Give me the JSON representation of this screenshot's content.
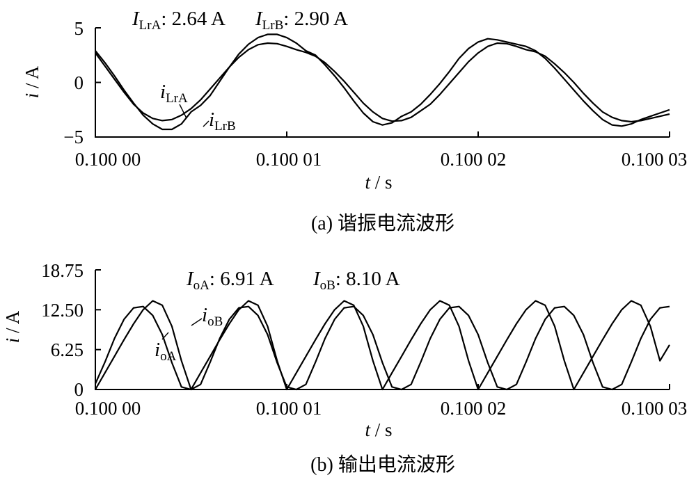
{
  "chart_data": [
    {
      "type": "line",
      "caption": "(a)  谐振电流波形",
      "ylabel_var": "i",
      "ylabel_unit": " / A",
      "xlabel_var": "t",
      "xlabel_unit": " / s",
      "xlim": [
        0.1,
        0.10003
      ],
      "ylim": [
        -5,
        5
      ],
      "xticks": [
        0.1,
        0.10001,
        0.10002,
        0.10003
      ],
      "xtick_labels": [
        "0.100 00",
        "0.100 01",
        "0.100 02",
        "0.100 03"
      ],
      "yticks": [
        -5,
        0,
        5
      ],
      "ytick_labels": [
        "−5",
        "0",
        "5"
      ],
      "rms": [
        {
          "symbol": "I",
          "sub": "LrA",
          "value": ": 2.64 A"
        },
        {
          "symbol": "I",
          "sub": "LrB",
          "value": ": 2.90 A"
        }
      ],
      "series": [
        {
          "name_symbol": "i",
          "name_sub": "LrA",
          "x": [
            0.1,
            0.1000005,
            0.100001,
            0.1000015,
            0.100002,
            0.1000025,
            0.100003,
            0.1000035,
            0.100004,
            0.1000045,
            0.100005,
            0.1000055,
            0.100006,
            0.1000065,
            0.100007,
            0.1000075,
            0.100008,
            0.1000085,
            0.100009,
            0.1000095,
            0.10001,
            0.1000105,
            0.100011,
            0.1000115,
            0.100012,
            0.1000125,
            0.100013,
            0.1000135,
            0.100014,
            0.1000145,
            0.100015,
            0.1000155,
            0.100016,
            0.1000165,
            0.100017,
            0.1000175,
            0.100018,
            0.1000185,
            0.100019,
            0.1000195,
            0.10002,
            0.1000205,
            0.100021,
            0.1000215,
            0.100022,
            0.1000225,
            0.100023,
            0.1000235,
            0.100024,
            0.1000245,
            0.100025,
            0.1000255,
            0.100026,
            0.1000265,
            0.100027,
            0.1000275,
            0.100028,
            0.1000285,
            0.100029,
            0.1000295,
            0.10003
          ],
          "y": [
            2.7,
            1.5,
            0.3,
            -0.9,
            -2.0,
            -2.8,
            -3.3,
            -3.5,
            -3.4,
            -3.0,
            -2.4,
            -1.6,
            -0.6,
            0.4,
            1.4,
            2.3,
            3.0,
            3.45,
            3.6,
            3.55,
            3.3,
            3.0,
            2.75,
            2.4,
            1.8,
            1.0,
            0.1,
            -0.9,
            -1.9,
            -2.7,
            -3.3,
            -3.55,
            -3.5,
            -3.2,
            -2.6,
            -2.0,
            -1.1,
            -0.1,
            0.9,
            1.9,
            2.7,
            3.3,
            3.6,
            3.55,
            3.3,
            3.0,
            2.8,
            2.4,
            1.7,
            0.9,
            0.0,
            -1.0,
            -1.9,
            -2.7,
            -3.2,
            -3.5,
            -3.6,
            -3.5,
            -3.3,
            -3.1,
            -2.9
          ]
        },
        {
          "name_symbol": "i",
          "name_sub": "LrB",
          "x": [
            0.1,
            0.1000005,
            0.100001,
            0.1000015,
            0.100002,
            0.1000025,
            0.100003,
            0.1000035,
            0.100004,
            0.1000045,
            0.100005,
            0.1000055,
            0.100006,
            0.1000065,
            0.100007,
            0.1000075,
            0.100008,
            0.1000085,
            0.100009,
            0.1000095,
            0.10001,
            0.1000105,
            0.100011,
            0.1000115,
            0.100012,
            0.1000125,
            0.100013,
            0.1000135,
            0.100014,
            0.1000145,
            0.100015,
            0.1000155,
            0.100016,
            0.1000165,
            0.100017,
            0.1000175,
            0.100018,
            0.1000185,
            0.100019,
            0.1000195,
            0.10002,
            0.1000205,
            0.100021,
            0.1000215,
            0.100022,
            0.1000225,
            0.100023,
            0.1000235,
            0.100024,
            0.1000245,
            0.100025,
            0.1000255,
            0.100026,
            0.1000265,
            0.100027,
            0.1000275,
            0.100028,
            0.1000285,
            0.100029,
            0.1000295,
            0.10003
          ],
          "y": [
            2.9,
            1.8,
            0.6,
            -0.7,
            -1.9,
            -3.0,
            -3.8,
            -4.3,
            -4.3,
            -3.8,
            -2.7,
            -2.1,
            -1.2,
            0.1,
            1.4,
            2.6,
            3.5,
            4.1,
            4.4,
            4.4,
            4.1,
            3.6,
            2.9,
            2.5,
            1.6,
            0.6,
            -0.5,
            -1.7,
            -2.8,
            -3.6,
            -3.9,
            -3.7,
            -3.1,
            -2.7,
            -2.0,
            -1.1,
            -0.1,
            1.0,
            2.2,
            3.1,
            3.7,
            4.0,
            3.9,
            3.7,
            3.5,
            3.3,
            2.9,
            2.2,
            1.3,
            0.3,
            -0.7,
            -1.7,
            -2.6,
            -3.4,
            -3.9,
            -4.0,
            -3.8,
            -3.4,
            -3.1,
            -2.8,
            -2.5
          ]
        }
      ]
    },
    {
      "type": "line",
      "caption": "(b)  输出电流波形",
      "ylabel_var": "i",
      "ylabel_unit": " / A",
      "xlabel_var": "t",
      "xlabel_unit": " / s",
      "xlim": [
        0.1,
        0.10003
      ],
      "ylim": [
        0,
        18.75
      ],
      "xticks": [
        0.1,
        0.10001,
        0.10002,
        0.10003
      ],
      "xtick_labels": [
        "0.100 00",
        "0.100 01",
        "0.100 02",
        "0.100 03"
      ],
      "yticks": [
        0,
        6.25,
        12.5,
        18.75
      ],
      "ytick_labels": [
        "0",
        "6.25",
        "12.50",
        "18.75"
      ],
      "rms": [
        {
          "symbol": "I",
          "sub": "oA",
          "value": ": 6.91 A"
        },
        {
          "symbol": "I",
          "sub": "oB",
          "value": ": 8.10 A"
        }
      ],
      "series": [
        {
          "name_symbol": "i",
          "name_sub": "oA",
          "x": [
            0.1,
            0.1000005,
            0.100001,
            0.1000015,
            0.100002,
            0.1000025,
            0.100003,
            0.1000035,
            0.100004,
            0.1000045,
            0.100005,
            0.1000055,
            0.100006,
            0.1000065,
            0.100007,
            0.1000075,
            0.100008,
            0.1000085,
            0.100009,
            0.1000095,
            0.10001,
            0.1000105,
            0.100011,
            0.1000115,
            0.100012,
            0.1000125,
            0.100013,
            0.1000135,
            0.100014,
            0.1000145,
            0.100015,
            0.1000155,
            0.100016,
            0.1000165,
            0.100017,
            0.1000175,
            0.100018,
            0.1000185,
            0.100019,
            0.1000195,
            0.10002,
            0.1000205,
            0.100021,
            0.1000215,
            0.100022,
            0.1000225,
            0.100023,
            0.1000235,
            0.100024,
            0.1000245,
            0.100025,
            0.1000255,
            0.100026,
            0.1000265,
            0.100027,
            0.1000275,
            0.100028,
            0.1000285,
            0.100029,
            0.1000295,
            0.10003
          ],
          "y": [
            0.9,
            4.3,
            8.0,
            11.0,
            12.8,
            13.0,
            11.6,
            8.6,
            4.2,
            0.4,
            0.0,
            0.8,
            4.3,
            8.0,
            11.0,
            12.8,
            13.0,
            11.6,
            8.6,
            4.2,
            0.4,
            0.0,
            0.8,
            4.3,
            8.0,
            11.0,
            12.8,
            13.0,
            11.6,
            8.6,
            4.2,
            0.4,
            0.0,
            0.8,
            4.3,
            8.0,
            11.0,
            12.8,
            13.0,
            11.6,
            8.6,
            4.2,
            0.4,
            0.0,
            0.8,
            4.3,
            8.0,
            11.0,
            12.8,
            13.0,
            11.6,
            8.6,
            4.2,
            0.4,
            0.0,
            0.8,
            4.3,
            8.0,
            11.0,
            12.8,
            13.0
          ]
        },
        {
          "name_symbol": "i",
          "name_sub": "oB",
          "x": [
            0.1,
            0.1000005,
            0.100001,
            0.1000015,
            0.100002,
            0.1000025,
            0.100003,
            0.1000035,
            0.100004,
            0.1000045,
            0.100005,
            0.1000055,
            0.100006,
            0.1000065,
            0.100007,
            0.1000075,
            0.100008,
            0.1000085,
            0.100009,
            0.1000095,
            0.10001,
            0.1000105,
            0.100011,
            0.1000115,
            0.100012,
            0.1000125,
            0.100013,
            0.1000135,
            0.100014,
            0.1000145,
            0.100015,
            0.1000155,
            0.100016,
            0.1000165,
            0.100017,
            0.1000175,
            0.100018,
            0.1000185,
            0.100019,
            0.1000195,
            0.10002,
            0.1000205,
            0.100021,
            0.1000215,
            0.100022,
            0.1000225,
            0.100023,
            0.1000235,
            0.100024,
            0.1000245,
            0.100025,
            0.1000255,
            0.100026,
            0.1000265,
            0.100027,
            0.1000275,
            0.100028,
            0.1000285,
            0.100029,
            0.1000295,
            0.10003
          ],
          "y": [
            0.0,
            2.6,
            5.2,
            7.8,
            10.3,
            12.5,
            13.9,
            13.2,
            9.9,
            4.5,
            0.0,
            2.6,
            5.2,
            7.8,
            10.3,
            12.5,
            13.9,
            13.2,
            9.9,
            4.5,
            0.0,
            2.6,
            5.2,
            7.8,
            10.3,
            12.5,
            13.9,
            13.2,
            9.9,
            4.5,
            0.0,
            2.6,
            5.2,
            7.8,
            10.3,
            12.5,
            13.9,
            13.2,
            9.9,
            4.5,
            0.0,
            2.6,
            5.2,
            7.8,
            10.3,
            12.5,
            13.9,
            13.2,
            9.9,
            4.5,
            0.0,
            2.6,
            5.2,
            7.8,
            10.3,
            12.5,
            13.9,
            13.2,
            9.9,
            4.5,
            7.0
          ]
        }
      ]
    }
  ]
}
